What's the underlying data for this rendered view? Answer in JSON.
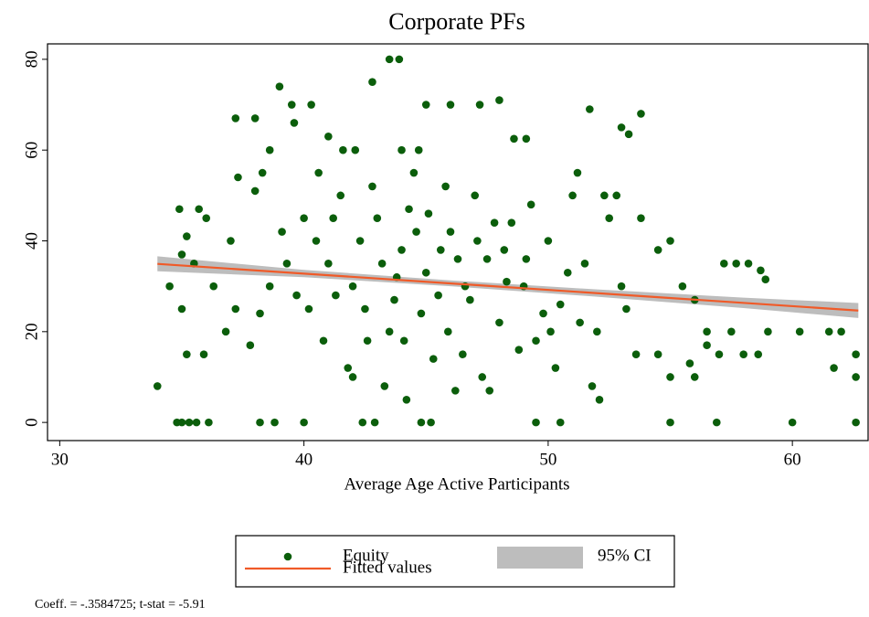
{
  "chart_data": {
    "type": "scatter",
    "title": "Corporate PFs",
    "x_label": "Average Age Active Participants",
    "note": "Coeff. =  -.3584725; t-stat =  -5.91",
    "xlim": [
      29.5,
      63.1
    ],
    "xticks": [
      30,
      40,
      50,
      60
    ],
    "ylim": [
      -4,
      83.4
    ],
    "yticks": [
      0,
      20,
      40,
      60,
      80
    ],
    "series": [
      {
        "name": "Equity",
        "color": "#0b5e0b",
        "x": [
          34,
          34.5,
          34.8,
          35,
          35.3,
          35.6,
          36.1,
          38.2,
          38.8,
          40,
          42.4,
          42.9,
          44.8,
          45.2,
          49.5,
          50.5,
          55,
          56.9,
          60,
          62.6,
          43.5,
          43.9,
          42.8,
          39,
          38,
          37.2,
          39.5,
          40.3,
          45,
          46,
          47.2,
          48,
          51.7,
          53.8,
          53,
          53.3,
          39.6,
          38.6,
          41,
          41.6,
          42.1,
          44,
          44.7,
          48.6,
          49.1,
          55,
          54.5,
          55.5,
          56,
          56.5,
          57.2,
          57.7,
          58.2,
          58.7,
          58.9,
          59,
          57.5,
          58,
          58.6,
          56,
          55,
          60.3,
          61.5,
          62,
          61.7,
          62.6,
          62.6,
          57,
          55.8,
          56.5,
          54.5,
          53.6,
          34.9,
          35,
          35.2,
          35.5,
          35.7,
          36,
          36.3,
          35,
          35.2,
          35.9,
          37,
          37.3,
          37.2,
          37.8,
          38,
          38.3,
          36.8,
          40,
          40.5,
          41,
          41.5,
          42,
          42.5,
          43,
          43.5,
          44,
          44.5,
          45,
          45.5,
          46,
          46.5,
          47,
          47.5,
          48,
          48.5,
          49,
          49.5,
          50,
          50.5,
          51,
          51.5,
          52,
          52.5,
          53,
          40.2,
          40.8,
          41.3,
          41.8,
          42.3,
          42.8,
          43.3,
          43.8,
          44.3,
          44.8,
          45.3,
          45.8,
          46.3,
          46.8,
          47.3,
          47.8,
          48.3,
          48.8,
          49.3,
          49.8,
          50.3,
          50.8,
          51.3,
          51.8,
          52.3,
          39.3,
          39.7,
          39.1,
          38.6,
          38.2,
          44.2,
          46.2,
          47.6,
          44.6,
          45.6,
          43.2,
          46.6,
          42.6,
          48.2,
          43.7,
          45.1,
          47.1,
          49.1,
          50.1,
          52.8,
          53.2,
          53.8,
          51.2,
          52.1,
          42,
          40.6,
          41.2,
          45.9,
          44.1
        ],
        "values": [
          8,
          30,
          0,
          0,
          0,
          0,
          0,
          0,
          0,
          0,
          0,
          0,
          0,
          0,
          0,
          0,
          0,
          0,
          0,
          0,
          80,
          80,
          75,
          74,
          67,
          67,
          70,
          70,
          70,
          70,
          70,
          71,
          69,
          68,
          65,
          63.5,
          66,
          60,
          63,
          60,
          60,
          60,
          60,
          62.5,
          62.5,
          40,
          38,
          30,
          27,
          20,
          35,
          35,
          35,
          33.5,
          31.5,
          20,
          20,
          15,
          15,
          10,
          10,
          20,
          20,
          20,
          12,
          15,
          10,
          15,
          13,
          17,
          15,
          15,
          47,
          37,
          41,
          35,
          47,
          45,
          30,
          25,
          15,
          15,
          40,
          54,
          25,
          17,
          51,
          55,
          20,
          45,
          40,
          35,
          50,
          30,
          25,
          45,
          20,
          38,
          55,
          33,
          28,
          42,
          15,
          50,
          36,
          22,
          44,
          30,
          18,
          40,
          26,
          50,
          35,
          20,
          45,
          30,
          25,
          18,
          28,
          12,
          40,
          52,
          8,
          32,
          47,
          24,
          14,
          52,
          36,
          27,
          10,
          44,
          31,
          16,
          48,
          24,
          12,
          33,
          22,
          8,
          50,
          35,
          28,
          42,
          30,
          24,
          5,
          7,
          7,
          42,
          38,
          35,
          30,
          18,
          38,
          27,
          46,
          40,
          36,
          20,
          50,
          25,
          45,
          55,
          5,
          10,
          55,
          45,
          20,
          18
        ]
      }
    ],
    "fit": {
      "name": "Fitted values",
      "color": "#f05a28",
      "x": [
        34,
        62.7
      ],
      "values": [
        34.93,
        24.65
      ]
    },
    "ci": {
      "name": "95% CI",
      "color": "#bdbdbd",
      "x": [
        34,
        40,
        46,
        52,
        58,
        62.7
      ],
      "lower": [
        33.3,
        32.0,
        30.0,
        27.7,
        25.2,
        23.0
      ],
      "upper": [
        36.6,
        33.6,
        31.3,
        29.3,
        27.5,
        26.3
      ]
    }
  }
}
